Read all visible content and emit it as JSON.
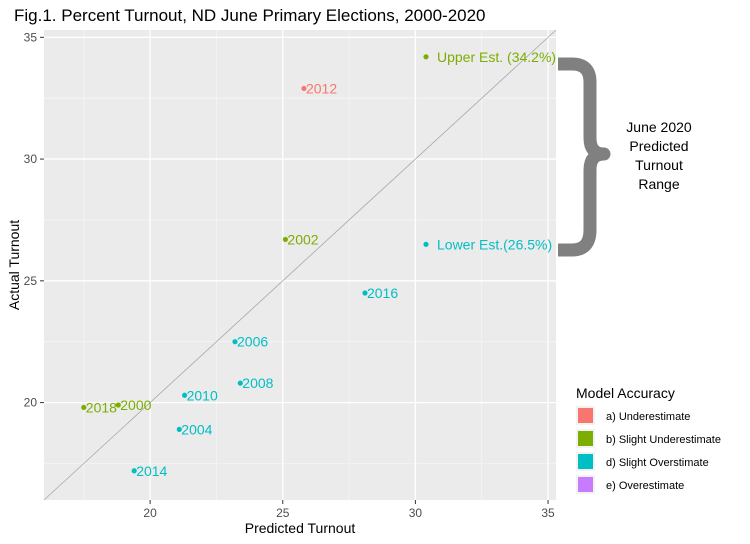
{
  "chart_data": {
    "type": "scatter",
    "title": "Fig.1. Percent Turnout, ND June Primary Elections, 2000-2020",
    "xlabel": "Predicted Turnout",
    "ylabel": "Actual Turnout",
    "xlim": [
      16,
      35.3
    ],
    "ylim": [
      16,
      35.3
    ],
    "xticks": [
      "20",
      "25",
      "30",
      "35"
    ],
    "yticks": [
      "20",
      "25",
      "30",
      "35"
    ],
    "xtick_values": [
      20,
      25,
      30,
      35
    ],
    "ytick_values": [
      20,
      25,
      30,
      35
    ],
    "grid": true,
    "reference_line": "y = x",
    "points": [
      {
        "label": "2000",
        "x": 18.8,
        "y": 19.9,
        "group": "b"
      },
      {
        "label": "2002",
        "x": 25.1,
        "y": 26.7,
        "group": "b"
      },
      {
        "label": "2004",
        "x": 21.1,
        "y": 18.9,
        "group": "c"
      },
      {
        "label": "2006",
        "x": 23.2,
        "y": 22.5,
        "group": "c"
      },
      {
        "label": "2008",
        "x": 23.4,
        "y": 20.8,
        "group": "c"
      },
      {
        "label": "2010",
        "x": 21.3,
        "y": 20.3,
        "group": "c"
      },
      {
        "label": "2012",
        "x": 25.8,
        "y": 32.9,
        "group": "a"
      },
      {
        "label": "2014",
        "x": 19.4,
        "y": 17.2,
        "group": "c"
      },
      {
        "label": "2016",
        "x": 28.1,
        "y": 24.5,
        "group": "c"
      },
      {
        "label": "2018",
        "x": 17.5,
        "y": 19.8,
        "group": "b"
      },
      {
        "label": "Upper Est. (34.2%)",
        "x": 30.4,
        "y": 34.2,
        "group": "b"
      },
      {
        "label": "Lower Est.(26.5%)",
        "x": 30.4,
        "y": 26.5,
        "group": "c"
      }
    ],
    "legend": {
      "title": "Model Accuracy",
      "position": "right",
      "items": [
        {
          "key": "a",
          "label": "a) Underestimate",
          "color": "#F8766D"
        },
        {
          "key": "b",
          "label": "b) Slight Underestimate",
          "color": "#7CAE00"
        },
        {
          "key": "c",
          "label": "d) Slight Overstimate",
          "color": "#00BFC4"
        },
        {
          "key": "e",
          "label": "e) Overestimate",
          "color": "#C77CFF"
        }
      ]
    },
    "annotation": {
      "lines": [
        "June 2020",
        "Predicted",
        "Turnout",
        "Range"
      ],
      "brace_color": "#808080"
    }
  }
}
